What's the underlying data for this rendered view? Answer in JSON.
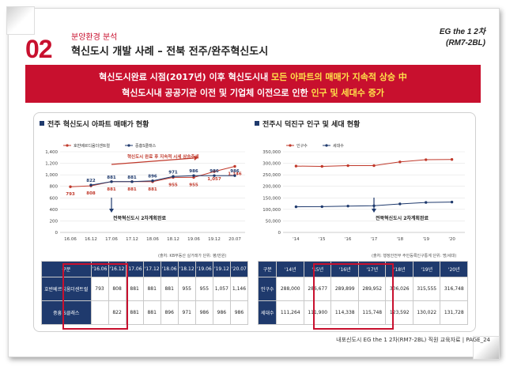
{
  "header": {
    "number": "02",
    "subtitle": "분양환경 분석",
    "title": "혁신도시 개발 사례 – 전북 전주/완주혁신도시",
    "brand_line1": "EG the 1 2차",
    "brand_line2": "(RM7-2BL)"
  },
  "banner": {
    "line1_a": "혁신도시완료 시점(2017년) 이후 혁신도시내 ",
    "line1_hl": "모든 아파트의 매매가 지속적 상승",
    "line1_b": " 中",
    "line2_a": "혁신도시내 공공기관 이전 및 기업체 이전으로 인한 ",
    "line2_hl": "인구 및 세대수 증가",
    "accent": "#c8102e",
    "highlight": "#ffe24a"
  },
  "left": {
    "section_title": "전주 혁신도시 아파트 매매가 현황",
    "source": "(출처: KB부동산 실거래가 단위: 평/만원)",
    "table": {
      "header": [
        "구분",
        "'16.06",
        "'16.12",
        "'17.06",
        "'17.12",
        "'18.06",
        "'18.12",
        "'19.06",
        "'19.12",
        "'20.07"
      ],
      "rows": [
        {
          "label": "호반베르디움더센트럴",
          "values": [
            "793",
            "808",
            "881",
            "881",
            "881",
            "955",
            "955",
            "1,057",
            "1,146"
          ]
        },
        {
          "label": "중흥 S클래스",
          "values": [
            "",
            "822",
            "881",
            "881",
            "896",
            "971",
            "986",
            "986",
            "986"
          ]
        }
      ]
    }
  },
  "right": {
    "section_title": "전주시 덕진구 인구 및 세대 현황",
    "source": "(출처: 행정안전부 주민등록인구통계 단위: 명/세대)",
    "table": {
      "header": [
        "구분",
        "'14년",
        "'15년",
        "'16년",
        "'17년",
        "'18년",
        "'19년",
        "'20년"
      ],
      "rows": [
        {
          "label": "인구수",
          "values": [
            "288,000",
            "286,677",
            "289,899",
            "289,952",
            "306,026",
            "315,555",
            "316,748"
          ]
        },
        {
          "label": "세대수",
          "values": [
            "111,264",
            "111,900",
            "114,338",
            "115,748",
            "123,592",
            "130,022",
            "131,728"
          ]
        }
      ]
    }
  },
  "chart_data": [
    {
      "type": "line",
      "title": "",
      "categories": [
        "16.06",
        "16.12",
        "17.06",
        "17.12",
        "18.06",
        "18.12",
        "19.06",
        "19.12",
        "20.07"
      ],
      "series": [
        {
          "name": "호반베르디움더센트럴",
          "color": "#c0392b",
          "values": [
            793,
            808,
            881,
            881,
            881,
            955,
            955,
            1057,
            1146
          ]
        },
        {
          "name": "중흥S클래스",
          "color": "#1f3a6d",
          "values": [
            null,
            822,
            881,
            881,
            896,
            971,
            986,
            986,
            986
          ]
        }
      ],
      "yticks": [
        "0",
        "200",
        "400",
        "600",
        "800",
        "1,000",
        "1,200",
        "1,400"
      ],
      "ylim": [
        0,
        1400
      ],
      "grid": true,
      "legend": "top-left",
      "annotations": {
        "trend": "혁신도시 완료 후 지속적 시세 상승추세",
        "milestone": "전북혁신도시 2차계획완료"
      }
    },
    {
      "type": "line",
      "title": "",
      "categories": [
        "'14",
        "'15",
        "'16",
        "'17",
        "'18",
        "'19",
        "'20"
      ],
      "series": [
        {
          "name": "인구수",
          "color": "#c0392b",
          "values": [
            288000,
            286677,
            289899,
            289952,
            306026,
            315555,
            316748
          ]
        },
        {
          "name": "세대수",
          "color": "#1f3a6d",
          "values": [
            111264,
            111900,
            114338,
            115748,
            123592,
            130022,
            131728
          ]
        }
      ],
      "yticks": [
        "0",
        "50,000",
        "100,000",
        "150,000",
        "200,000",
        "250,000",
        "300,000",
        "350,000"
      ],
      "ylim": [
        0,
        350000
      ],
      "grid": true,
      "legend": "top-left",
      "annotations": {
        "milestone": "전북혁신도시 2차계획완료"
      }
    }
  ],
  "footer": {
    "text": "내포신도시 EG the 1 2차(RM7-2BL)  직원 교육자료  |  PAGE_24"
  }
}
